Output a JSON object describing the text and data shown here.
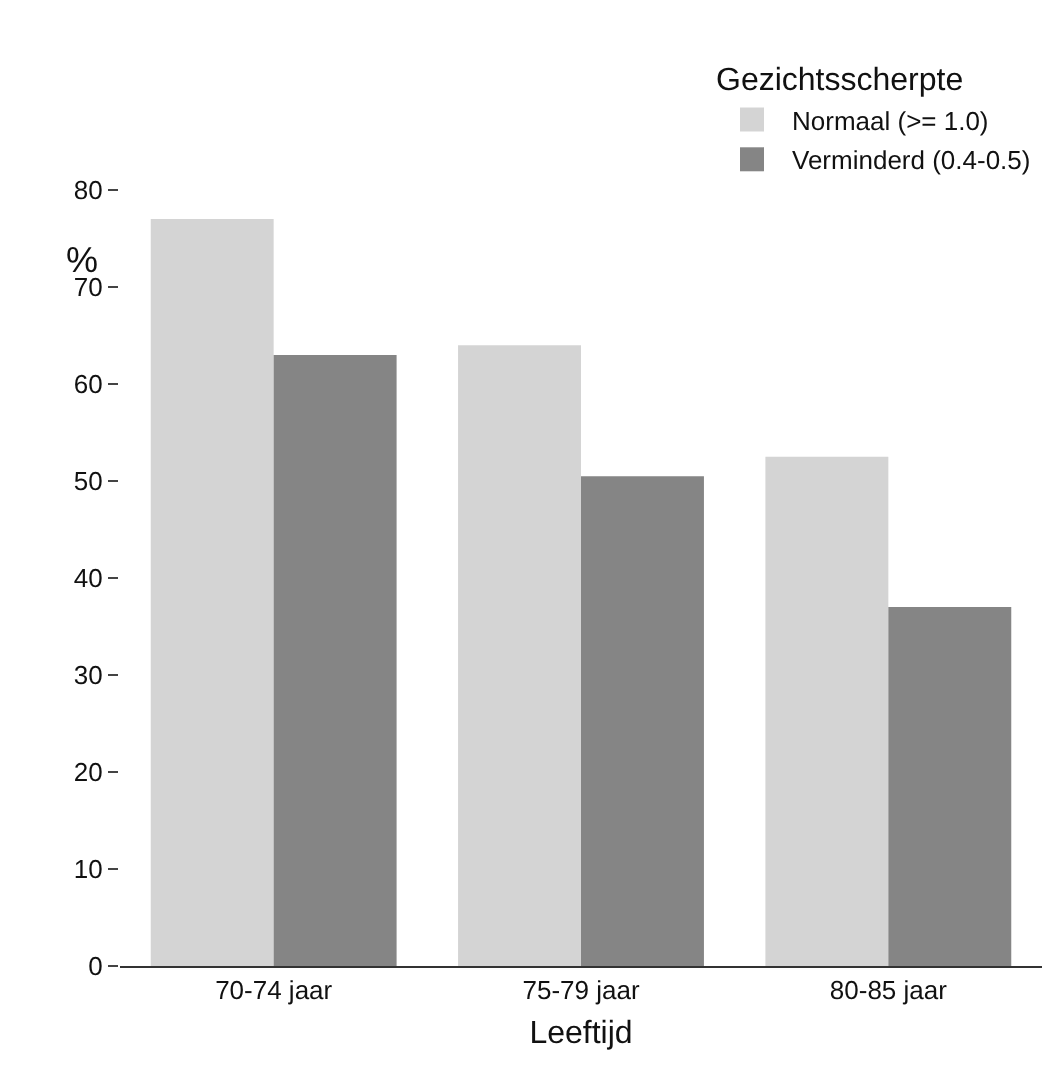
{
  "chart_data": {
    "type": "bar",
    "categories": [
      "70-74 jaar",
      "75-79 jaar",
      "80-85 jaar"
    ],
    "series": [
      {
        "name": "Normaal (>= 1.0)",
        "color": "#d4d4d4",
        "values": [
          77,
          64,
          52.5
        ]
      },
      {
        "name": "Verminderd (0.4-0.5)",
        "color": "#858585",
        "values": [
          63,
          50.5,
          37
        ]
      }
    ],
    "xlabel": "Leeftijd",
    "ylabel": "%",
    "legend_title": "Gezichtsscherpte",
    "ylim": [
      0,
      80
    ],
    "yticks": [
      0,
      10,
      20,
      30,
      40,
      50,
      60,
      70,
      80
    ],
    "legend": "top right"
  }
}
